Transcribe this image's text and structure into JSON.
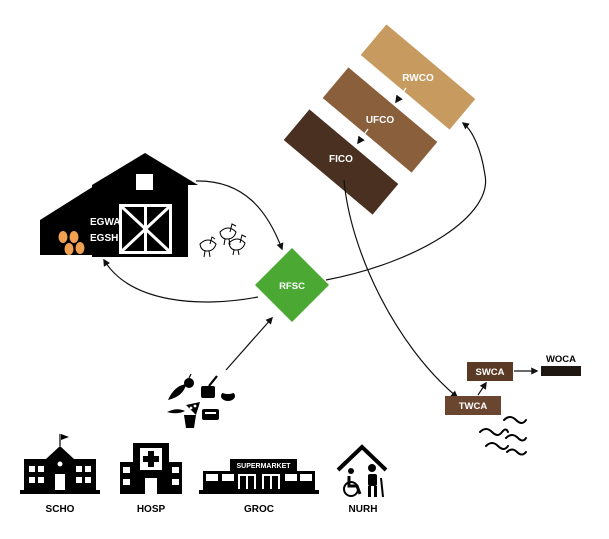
{
  "nodes": {
    "rwco": "RWCO",
    "ufco": "UFCO",
    "fico": "FICO",
    "egwa": "EGWA",
    "egsh": "EGSH",
    "rfsc": "RFSC",
    "swca": "SWCA",
    "woca": "WOCA",
    "twca": "TWCA"
  },
  "sources": {
    "scho": "SCHO",
    "hosp": "HOSP",
    "groc": "GROC",
    "nurh": "NURH",
    "supermarket_sign": "SUPERMARKET"
  },
  "colors": {
    "rwco": "#c79a5f",
    "ufco": "#8a5f3b",
    "fico": "#4a3020",
    "rfsc": "#4aa833",
    "swca": "#5a3a24",
    "twca": "#6a4530",
    "woca": "#1e1610",
    "barn": "#000000",
    "eggs": "#f0a050",
    "arrow": "#111111"
  },
  "icons": {
    "barn": "barn-icon",
    "chickens": "chickens-icon",
    "food": "food-waste-icon",
    "worms": "worms-icon",
    "school": "school-icon",
    "hospital": "hospital-icon",
    "grocery": "supermarket-icon",
    "nursing_home": "nursing-home-icon"
  }
}
